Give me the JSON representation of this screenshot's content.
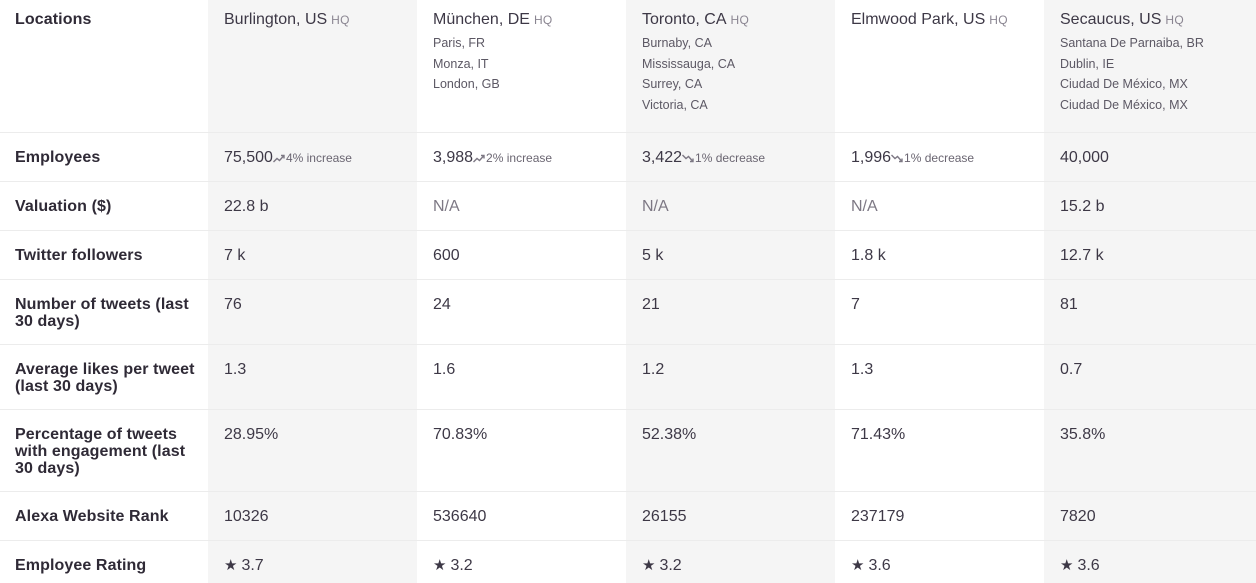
{
  "row_labels": {
    "locations": "Locations",
    "employees": "Employees",
    "valuation": "Valuation ($)",
    "twitter_followers": "Twitter followers",
    "tweets": "Number of tweets (last 30 days)",
    "likes": "Average likes per tweet (last 30 days)",
    "engagement": "Percentage of tweets with engagement (last 30 days)",
    "alexa": "Alexa Website Rank",
    "rating": "Employee Rating"
  },
  "hq_badge": "HQ",
  "companies": [
    {
      "hq": "Burlington, US",
      "other_locations": [],
      "employees": "75,500",
      "employee_trend": {
        "direction": "up",
        "text": "4% increase"
      },
      "valuation": "22.8 b",
      "twitter_followers": "7 k",
      "tweets": "76",
      "likes": "1.3",
      "engagement": "28.95%",
      "alexa_rank": "10326",
      "rating": "3.7"
    },
    {
      "hq": "München, DE",
      "other_locations": [
        "Paris, FR",
        "Monza, IT",
        "London, GB"
      ],
      "employees": "3,988",
      "employee_trend": {
        "direction": "up",
        "text": "2% increase"
      },
      "valuation": "N/A",
      "twitter_followers": "600",
      "tweets": "24",
      "likes": "1.6",
      "engagement": "70.83%",
      "alexa_rank": "536640",
      "rating": "3.2"
    },
    {
      "hq": "Toronto, CA",
      "other_locations": [
        "Burnaby, CA",
        "Mississauga, CA",
        "Surrey, CA",
        "Victoria, CA"
      ],
      "employees": "3,422",
      "employee_trend": {
        "direction": "down",
        "text": "1% decrease"
      },
      "valuation": "N/A",
      "twitter_followers": "5 k",
      "tweets": "21",
      "likes": "1.2",
      "engagement": "52.38%",
      "alexa_rank": "26155",
      "rating": "3.2"
    },
    {
      "hq": "Elmwood Park, US",
      "other_locations": [],
      "employees": "1,996",
      "employee_trend": {
        "direction": "down",
        "text": "1% decrease"
      },
      "valuation": "N/A",
      "twitter_followers": "1.8 k",
      "tweets": "7",
      "likes": "1.3",
      "engagement": "71.43%",
      "alexa_rank": "237179",
      "rating": "3.6"
    },
    {
      "hq": "Secaucus, US",
      "other_locations": [
        "Santana De Parnaiba, BR",
        "Dublin, IE",
        "Ciudad De México, MX",
        "Ciudad De México, MX"
      ],
      "employees": "40,000",
      "employee_trend": null,
      "valuation": "15.2 b",
      "twitter_followers": "12.7 k",
      "tweets": "81",
      "likes": "0.7",
      "engagement": "35.8%",
      "alexa_rank": "7820",
      "rating": "3.6"
    }
  ],
  "icons": {
    "trend_up": "trend-up-icon",
    "trend_down": "trend-down-icon",
    "rating": "star-icon"
  },
  "colors": {
    "shaded_column": "#f5f5f5",
    "text": "#3d3846",
    "muted": "#7d7884"
  }
}
